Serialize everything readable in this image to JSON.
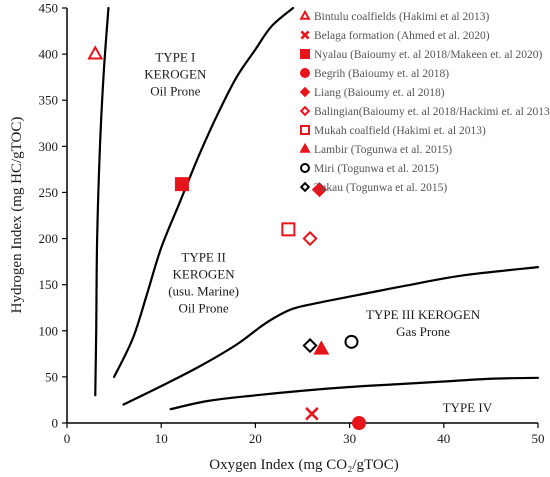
{
  "chart_data": {
    "type": "scatter",
    "xlabel": "Oxygen Index (mg CO₂/gTOC)",
    "ylabel": "Hydrogen Index (mg HC/gTOC)",
    "xlim": [
      0,
      50
    ],
    "ylim": [
      0,
      450
    ],
    "x_ticks": [
      "0",
      "10",
      "20",
      "30",
      "40",
      "50"
    ],
    "y_ticks": [
      "0",
      "50",
      "100",
      "150",
      "200",
      "250",
      "300",
      "350",
      "400",
      "450"
    ],
    "grid": false,
    "legend_position": "top-right",
    "colors": {
      "red": "#e8141c",
      "black": "#000000",
      "axis": "#000000"
    },
    "region_labels": [
      {
        "lines": [
          "TYPE I",
          "KEROGEN",
          "Oil Prone"
        ],
        "x": 11.5,
        "y": 392
      },
      {
        "lines": [
          "TYPE II",
          "KEROGEN",
          "(usu. Marine)",
          "Oil Prone"
        ],
        "x": 14.5,
        "y": 175
      },
      {
        "lines": [
          "TYPE III KEROGEN",
          "Gas Prone"
        ],
        "x": 37.8,
        "y": 113
      },
      {
        "lines": [
          "TYPE IV"
        ],
        "x": 42.5,
        "y": 12
      }
    ],
    "boundaries": [
      {
        "name": "type-i-ii-boundary",
        "points": [
          [
            3.0,
            30
          ],
          [
            3.1,
            100
          ],
          [
            3.2,
            200
          ],
          [
            3.5,
            300
          ],
          [
            3.9,
            380
          ],
          [
            4.4,
            450
          ]
        ]
      },
      {
        "name": "type-ii-upper-boundary",
        "points": [
          [
            5,
            50
          ],
          [
            7,
            92
          ],
          [
            8.5,
            140
          ],
          [
            10,
            190
          ],
          [
            12,
            240
          ],
          [
            14,
            290
          ],
          [
            16,
            335
          ],
          [
            18,
            375
          ],
          [
            20,
            405
          ],
          [
            21.7,
            430
          ],
          [
            24,
            450
          ]
        ]
      },
      {
        "name": "type-ii-iii-boundary",
        "points": [
          [
            6,
            20
          ],
          [
            10,
            40
          ],
          [
            14,
            61
          ],
          [
            18,
            85
          ],
          [
            20.5,
            104
          ],
          [
            22,
            114
          ],
          [
            24,
            124
          ],
          [
            27,
            131
          ],
          [
            31,
            139
          ],
          [
            36,
            149
          ],
          [
            42,
            160
          ],
          [
            50,
            169
          ]
        ]
      },
      {
        "name": "type-iii-iv-boundary",
        "points": [
          [
            11,
            15
          ],
          [
            15,
            24
          ],
          [
            20,
            30
          ],
          [
            25,
            35
          ],
          [
            30,
            39
          ],
          [
            35,
            42
          ],
          [
            40,
            45
          ],
          [
            45,
            48
          ],
          [
            50,
            49
          ]
        ]
      }
    ],
    "series": [
      {
        "name": "Bintulu coalfields (Hakimi et al 2013)",
        "marker": "triangle-open",
        "color": "#e8141c",
        "points": [
          [
            3.0,
            400
          ]
        ]
      },
      {
        "name": "Belaga formation (Ahmed et al. 2020)",
        "marker": "x",
        "color": "#e8141c",
        "points": [
          [
            26.0,
            10
          ]
        ]
      },
      {
        "name": "Nyalau (Baioumy et. al 2018/Makeen et. al 2020)",
        "marker": "square-filled",
        "color": "#e8141c",
        "points": [
          [
            12.2,
            259
          ]
        ]
      },
      {
        "name": "Begrih (Baioumy et. al 2018)",
        "marker": "circle-filled",
        "color": "#e8141c",
        "points": [
          [
            31.0,
            0
          ]
        ]
      },
      {
        "name": "Liang (Baioumy et. al 2018)",
        "marker": "diamond-filled",
        "color": "#e8141c",
        "points": [
          [
            26.8,
            253
          ]
        ]
      },
      {
        "name": "Balingian(Baioumy et. al 2018/Hackimi et. al 2013)",
        "marker": "diamond-open",
        "color": "#e8141c",
        "points": [
          [
            25.8,
            200
          ]
        ]
      },
      {
        "name": "Mukah coalfield (Hakimi et. al 2013)",
        "marker": "square-open",
        "color": "#e8141c",
        "points": [
          [
            23.5,
            210
          ]
        ]
      },
      {
        "name": "Lambir (Togunwa et al. 2015)",
        "marker": "triangle-filled",
        "color": "#e8141c",
        "points": [
          [
            27.0,
            80
          ]
        ]
      },
      {
        "name": "Miri (Togunwa et al. 2015)",
        "marker": "circle-open",
        "color": "#000000",
        "points": [
          [
            30.2,
            88
          ]
        ]
      },
      {
        "name": "Tukau (Togunwa et al. 2015)",
        "marker": "diamond-open",
        "color": "#000000",
        "points": [
          [
            25.8,
            84
          ]
        ]
      }
    ]
  }
}
